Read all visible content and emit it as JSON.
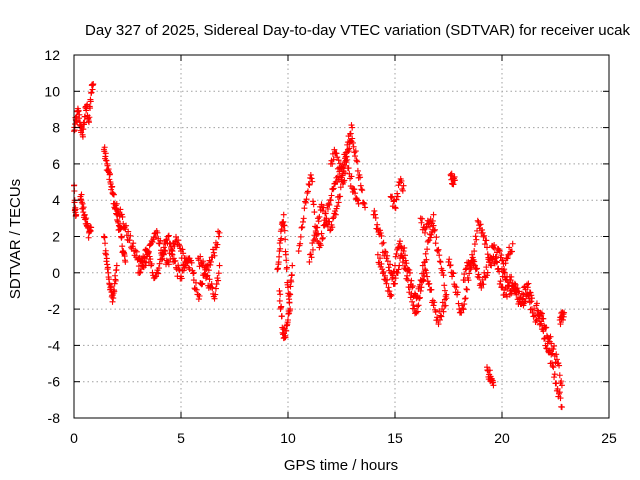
{
  "chart_data": {
    "type": "scatter",
    "title": "Day 327 of 2025, Sidereal Day-to-day VTEC variation (SDTVAR) for receiver ucak",
    "xlabel": "GPS time / hours",
    "ylabel": "SDTVAR / TECUs",
    "xlim": [
      0,
      25
    ],
    "ylim": [
      -8,
      12
    ],
    "xticks": [
      0,
      5,
      10,
      15,
      20,
      25
    ],
    "yticks": [
      -8,
      -6,
      -4,
      -2,
      0,
      2,
      4,
      6,
      8,
      10,
      12
    ],
    "grid": true,
    "marker": "+",
    "series_color": "#ff0000",
    "series": [
      {
        "name": "SDTVAR",
        "segments": [
          {
            "x": [
              0.0,
              0.1,
              0.2,
              0.3,
              0.4,
              0.5,
              0.6,
              0.7,
              0.8,
              0.9
            ],
            "y": [
              7.8,
              8.4,
              8.9,
              8.1,
              7.6,
              8.6,
              9.2,
              8.3,
              9.9,
              10.4
            ]
          },
          {
            "x": [
              0.0,
              0.05,
              0.1
            ],
            "y": [
              4.8,
              3.5,
              3.2
            ]
          },
          {
            "x": [
              0.3,
              0.4,
              0.5,
              0.6,
              0.7,
              0.8
            ],
            "y": [
              4.2,
              3.8,
              3.2,
              2.6,
              2.2,
              2.5
            ]
          },
          {
            "x": [
              1.4,
              1.5,
              1.6,
              1.7,
              1.8,
              1.9,
              2.0,
              2.1,
              2.2,
              2.3,
              2.4
            ],
            "y": [
              6.8,
              6.2,
              5.6,
              5.0,
              4.4,
              3.8,
              3.2,
              2.6,
              2.0,
              1.2,
              0.6
            ]
          },
          {
            "x": [
              1.4,
              1.5,
              1.6,
              1.7,
              1.8,
              1.9,
              2.0
            ],
            "y": [
              2.0,
              1.0,
              0.0,
              -0.8,
              -1.6,
              -0.6,
              0.4
            ]
          },
          {
            "x": [
              2.0,
              2.2,
              2.4,
              2.6,
              2.8,
              3.0,
              3.2,
              3.4,
              3.6,
              3.8,
              4.0,
              4.2,
              4.4,
              4.6,
              4.8,
              5.0,
              5.2,
              5.4
            ],
            "y": [
              3.8,
              3.2,
              2.4,
              1.8,
              1.2,
              0.8,
              0.4,
              0.9,
              1.6,
              2.2,
              1.6,
              1.0,
              0.6,
              1.2,
              1.8,
              1.2,
              0.6,
              0.2
            ]
          },
          {
            "x": [
              3.0,
              3.2,
              3.4,
              3.6,
              3.8,
              4.0,
              4.2,
              4.4,
              4.6,
              4.8,
              5.0,
              5.2,
              5.4,
              5.6
            ],
            "y": [
              0.0,
              0.6,
              1.2,
              0.4,
              -0.2,
              0.5,
              1.4,
              2.0,
              1.0,
              0.2,
              -0.2,
              0.4,
              0.8,
              0.0
            ]
          },
          {
            "x": [
              5.6,
              5.8,
              6.0,
              6.2,
              6.4,
              6.6,
              6.8
            ],
            "y": [
              -0.4,
              -1.2,
              -0.6,
              0.2,
              0.6,
              1.4,
              2.2
            ]
          },
          {
            "x": [
              5.8,
              6.0,
              6.2,
              6.4,
              6.6,
              6.8
            ],
            "y": [
              0.8,
              0.4,
              -0.2,
              -0.8,
              -1.2,
              0.4
            ]
          },
          {
            "x": [
              9.5,
              9.6,
              9.7,
              9.8,
              9.9,
              10.0,
              10.1
            ],
            "y": [
              0.2,
              1.2,
              2.4,
              3.2,
              1.0,
              -0.8,
              -2.0
            ]
          },
          {
            "x": [
              9.6,
              9.7,
              9.8,
              9.9,
              10.0,
              10.1,
              10.2
            ],
            "y": [
              -1.0,
              -2.4,
              -3.6,
              -3.2,
              -2.6,
              -1.2,
              0.4
            ]
          },
          {
            "x": [
              10.5,
              10.7,
              10.9,
              11.1,
              11.3,
              11.5,
              11.7,
              11.9,
              12.1,
              12.3,
              12.5,
              12.7,
              12.9,
              13.1,
              13.3
            ],
            "y": [
              1.2,
              2.8,
              4.4,
              5.2,
              2.2,
              1.6,
              2.6,
              3.8,
              4.6,
              5.0,
              5.8,
              6.4,
              5.2,
              4.6,
              3.8
            ]
          },
          {
            "x": [
              11.0,
              11.2,
              11.4,
              11.6,
              11.8,
              12.0,
              12.2,
              12.4,
              12.6,
              12.8,
              13.0
            ],
            "y": [
              0.6,
              1.8,
              3.0,
              3.6,
              2.8,
              2.4,
              3.4,
              4.2,
              5.6,
              7.2,
              8.0
            ]
          },
          {
            "x": [
              12.0,
              12.2,
              12.4,
              12.6,
              12.8,
              13.0,
              13.2,
              13.4,
              13.6
            ],
            "y": [
              6.0,
              6.6,
              5.8,
              5.0,
              6.8,
              7.4,
              6.2,
              4.8,
              3.6
            ]
          },
          {
            "x": [
              14.0,
              14.2,
              14.4,
              14.6,
              14.8,
              15.0,
              15.2,
              15.4,
              15.6,
              15.8,
              16.0,
              16.2,
              16.4,
              16.6,
              16.8,
              17.0,
              17.2,
              17.4
            ],
            "y": [
              3.2,
              2.4,
              1.6,
              0.8,
              0.0,
              -0.6,
              0.4,
              1.2,
              0.2,
              -0.8,
              -1.4,
              -0.4,
              0.6,
              1.8,
              2.6,
              1.2,
              0.0,
              -1.2
            ]
          },
          {
            "x": [
              14.2,
              14.4,
              14.6,
              14.8,
              15.0,
              15.2,
              15.4,
              15.6,
              15.8,
              16.0,
              16.2,
              16.4,
              16.6,
              16.8,
              17.0,
              17.2,
              17.4
            ],
            "y": [
              1.0,
              0.2,
              -0.6,
              -1.2,
              0.4,
              1.6,
              0.8,
              -0.4,
              -1.6,
              -2.2,
              -1.0,
              0.2,
              -0.6,
              -1.8,
              -2.6,
              -2.0,
              -1.4
            ]
          },
          {
            "x": [
              14.8,
              15.0,
              15.2,
              15.4
            ],
            "y": [
              4.2,
              3.6,
              5.0,
              4.8
            ]
          },
          {
            "x": [
              16.2,
              16.4,
              16.6,
              16.8
            ],
            "y": [
              3.0,
              2.2,
              2.8,
              3.2
            ]
          },
          {
            "x": [
              17.6,
              17.7,
              17.8
            ],
            "y": [
              5.4,
              5.2,
              5.1
            ]
          },
          {
            "x": [
              17.5,
              17.7,
              17.9,
              18.1,
              18.3,
              18.5,
              18.7,
              18.9,
              19.1,
              19.3,
              19.5,
              19.7,
              19.9,
              20.1,
              20.3,
              20.5
            ],
            "y": [
              0.6,
              0.0,
              -1.2,
              -2.2,
              -1.4,
              0.2,
              1.2,
              2.8,
              2.2,
              1.4,
              0.4,
              0.8,
              1.2,
              0.2,
              1.0,
              1.6
            ]
          },
          {
            "x": [
              18.2,
              18.4,
              18.6,
              18.8,
              19.0,
              19.2,
              19.4,
              19.6,
              19.8,
              20.0,
              20.2,
              20.4,
              20.6,
              20.8,
              21.0,
              21.2,
              21.4
            ],
            "y": [
              -0.4,
              0.4,
              1.0,
              0.2,
              -0.6,
              -0.2,
              0.6,
              1.4,
              0.2,
              -0.8,
              -1.2,
              -0.4,
              -1.0,
              -1.6,
              -1.2,
              -0.8,
              -1.4
            ]
          },
          {
            "x": [
              19.3,
              19.4,
              19.5,
              19.6
            ],
            "y": [
              -5.2,
              -5.6,
              -5.9,
              -6.2
            ]
          },
          {
            "x": [
              20.0,
              20.2,
              20.4,
              20.6,
              20.8,
              21.0,
              21.2,
              21.4,
              21.6,
              21.8,
              22.0,
              22.2,
              22.4,
              22.6,
              22.8
            ],
            "y": [
              0.2,
              -0.4,
              -1.0,
              -0.6,
              -1.4,
              -1.8,
              -1.2,
              -2.0,
              -2.6,
              -2.2,
              -3.0,
              -3.6,
              -4.2,
              -5.0,
              -6.2
            ]
          },
          {
            "x": [
              21.6,
              21.8,
              22.0,
              22.2,
              22.4,
              22.6,
              22.8
            ],
            "y": [
              -1.8,
              -2.8,
              -3.6,
              -4.4,
              -5.2,
              -6.4,
              -7.4
            ]
          },
          {
            "x": [
              22.7,
              22.8,
              22.9
            ],
            "y": [
              -2.6,
              -2.4,
              -2.2
            ]
          }
        ]
      }
    ]
  }
}
